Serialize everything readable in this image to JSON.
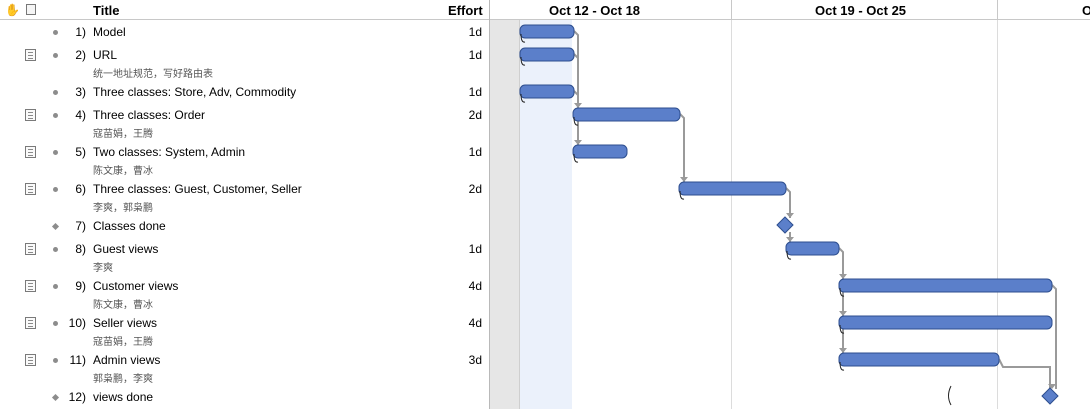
{
  "header": {
    "title_col": "Title",
    "effort_col": "Effort",
    "weeks": [
      "Oct 12 - Oct 18",
      "Oct 19 - Oct 25",
      "O"
    ]
  },
  "tasks": [
    {
      "num": "1)",
      "title": "Model",
      "sub": "",
      "effort": "1d",
      "note": false,
      "milestone": false
    },
    {
      "num": "2)",
      "title": "URL",
      "sub": "统一地址规范，写好路由表",
      "effort": "1d",
      "note": true,
      "milestone": false
    },
    {
      "num": "3)",
      "title": "Three classes: Store, Adv, Commodity",
      "sub": "",
      "effort": "1d",
      "note": false,
      "milestone": false
    },
    {
      "num": "4)",
      "title": "Three classes: Order",
      "sub": "寇苗娟，王腾",
      "effort": "2d",
      "note": true,
      "milestone": false
    },
    {
      "num": "5)",
      "title": "Two classes: System, Admin",
      "sub": "陈文康，曹冰",
      "effort": "1d",
      "note": true,
      "milestone": false
    },
    {
      "num": "6)",
      "title": "Three classes: Guest, Customer, Seller",
      "sub": "李爽，郭枭鹏",
      "effort": "2d",
      "note": true,
      "milestone": false
    },
    {
      "num": "7)",
      "title": "Classes done",
      "sub": "",
      "effort": "",
      "note": false,
      "milestone": true
    },
    {
      "num": "8)",
      "title": "Guest views",
      "sub": "李爽",
      "effort": "1d",
      "note": true,
      "milestone": false
    },
    {
      "num": "9)",
      "title": "Customer views",
      "sub": "陈文康，曹冰",
      "effort": "4d",
      "note": true,
      "milestone": false
    },
    {
      "num": "10)",
      "title": "Seller views",
      "sub": "寇苗娟，王腾",
      "effort": "4d",
      "note": true,
      "milestone": false
    },
    {
      "num": "11)",
      "title": "Admin views",
      "sub": "郭枭鹏，李爽",
      "effort": "3d",
      "note": true,
      "milestone": false
    },
    {
      "num": "12)",
      "title": "views done",
      "sub": "",
      "effort": "",
      "note": false,
      "milestone": true
    }
  ],
  "colors": {
    "bar_fill": "#5b7fca",
    "bar_border": "#2d4e8f",
    "connector": "#9a9a9a",
    "today_col": "#ebf1fb",
    "weekend_col": "#e6e6e6"
  }
}
